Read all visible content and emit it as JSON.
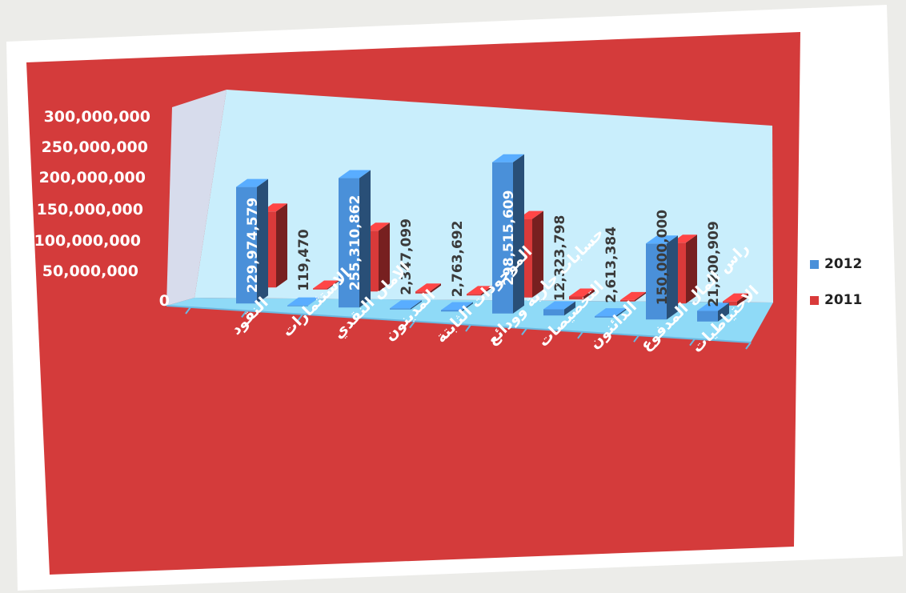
{
  "chart_data": {
    "type": "bar",
    "title": "",
    "xlabel": "",
    "ylabel": "",
    "three_d": true,
    "grid": false,
    "legend_position": "right",
    "ylim": [
      0,
      300000000
    ],
    "ytick_labels": [
      "300,000,000",
      "250,000,000",
      "200,000,000",
      "150,000,000",
      "100,000,000",
      "50,000,000",
      "0"
    ],
    "ytick_values": [
      300000000,
      250000000,
      200000000,
      150000000,
      100000000,
      50000000,
      0
    ],
    "categories": [
      "النقود",
      "الاستثمارات",
      "الامان النقدي",
      "المدينون",
      "الموجودات الثابتة",
      "حسابات جارية وودائع",
      "التخصيصات",
      "الدائنون",
      "راس المال المدفوع",
      "الاحتياطيات"
    ],
    "series": [
      {
        "name": "2012",
        "color": "#4a90d9",
        "values": [
          229974579,
          119470,
          255310862,
          2347099,
          2763692,
          298515609,
          12323798,
          2613384,
          150000000,
          21200909
        ],
        "labels": [
          "229,974,579",
          "119,470",
          "255,310,862",
          "2,347,099",
          "2,763,692",
          "298,515,609",
          "12,323,798",
          "2,613,384",
          "150,000,000",
          "21,200,909"
        ]
      },
      {
        "name": "2011",
        "color": "#d93a3a",
        "values": [
          150000000,
          2000000,
          120000000,
          4000000,
          3000000,
          155000000,
          6000000,
          3000000,
          120000000,
          8000000
        ]
      }
    ],
    "colors": {
      "plot_background": "#d43b3b",
      "wall_back": "#c9eefc",
      "wall_side": "#d7dcec",
      "floor": "#8fdaf7",
      "tick_text": "#ffffff",
      "category_text": "#ffffff",
      "data_label_inside": "#ffffff",
      "data_label_outside": "#3a3a3a",
      "page_background": "#ffffff"
    }
  }
}
